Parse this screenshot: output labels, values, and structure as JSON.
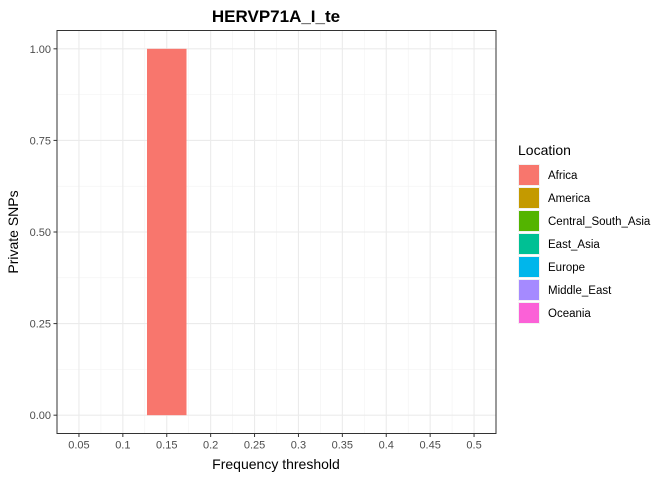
{
  "chart_data": {
    "type": "bar",
    "title": "HERVP71A_I_te",
    "xlabel": "Frequency threshold",
    "ylabel": "Private SNPs",
    "x_ticks": [
      "0.05",
      "0.1",
      "0.15",
      "0.2",
      "0.25",
      "0.3",
      "0.35",
      "0.4",
      "0.45",
      "0.5"
    ],
    "y_ticks": [
      "0.00",
      "0.25",
      "0.50",
      "0.75",
      "1.00"
    ],
    "ylim": [
      -0.05,
      1.05
    ],
    "xlim": [
      0.025,
      0.525
    ],
    "bar_width": 0.045,
    "series": [
      {
        "name": "Africa",
        "color": "#F8766D",
        "points": [
          {
            "x": 0.15,
            "y": 1.0
          }
        ]
      }
    ],
    "legend": {
      "title": "Location",
      "position": "right",
      "entries": [
        {
          "label": "Africa",
          "color": "#F8766D"
        },
        {
          "label": "America",
          "color": "#C49A00"
        },
        {
          "label": "Central_South_Asia",
          "color": "#53B400"
        },
        {
          "label": "East_Asia",
          "color": "#00C094"
        },
        {
          "label": "Europe",
          "color": "#00B6EB"
        },
        {
          "label": "Middle_East",
          "color": "#A58AFF"
        },
        {
          "label": "Oceania",
          "color": "#FB61D7"
        }
      ]
    },
    "grid": true
  }
}
